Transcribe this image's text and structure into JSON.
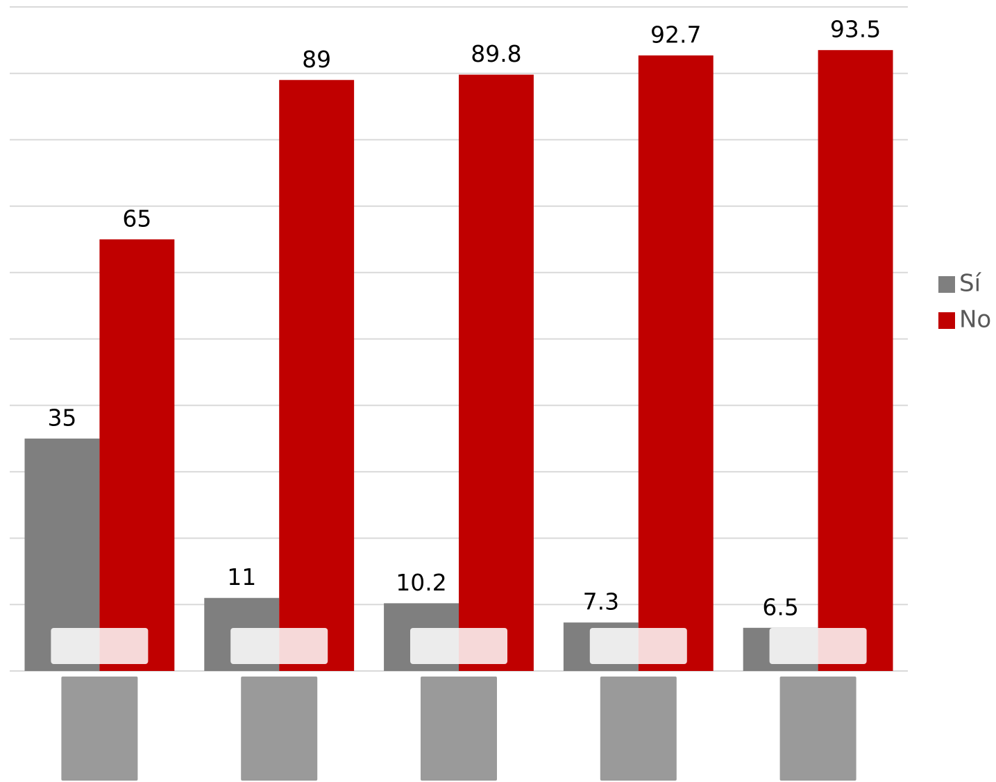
{
  "chart_data": {
    "type": "bar",
    "categories": [
      null,
      null,
      null,
      null,
      null
    ],
    "series": [
      {
        "name": "Sí",
        "color": "#7f7f7f",
        "values": [
          35,
          11,
          10.2,
          7.3,
          6.5
        ]
      },
      {
        "name": "No",
        "color": "#c00000",
        "values": [
          65,
          89,
          89.8,
          92.7,
          93.5
        ]
      }
    ],
    "ylim": [
      0,
      100
    ],
    "yticks": [
      0,
      10,
      20,
      30,
      40,
      50,
      60,
      70,
      80,
      90,
      100
    ],
    "grid": true,
    "legend": "right"
  }
}
